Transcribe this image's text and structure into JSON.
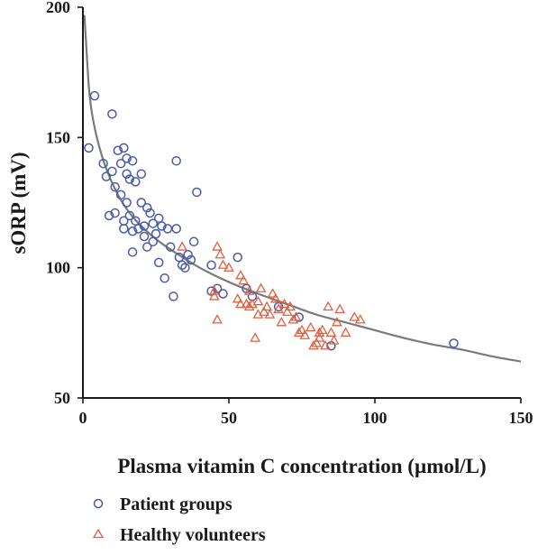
{
  "chart_data": {
    "type": "scatter",
    "title": "",
    "xlabel": "Plasma vitamin C concentration (µmol/L)",
    "ylabel": "sORP (mV)",
    "xlim": [
      0,
      150
    ],
    "ylim": [
      50,
      200
    ],
    "x_ticks": [
      "0",
      "50",
      "100",
      "150"
    ],
    "y_ticks": [
      "50",
      "100",
      "150",
      "200"
    ],
    "grid": false,
    "legend_position": "bottom-left",
    "colors": {
      "patient": "#4a5aa8",
      "healthy": "#e06040",
      "fit": "#7a7a7a",
      "axis": "#1a1a1a"
    },
    "fit_curve": {
      "shape": "decreasing power-law fit",
      "x_min": 0.5,
      "x_max": 150,
      "points": [
        [
          0.5,
          197
        ],
        [
          1,
          188
        ],
        [
          2,
          170
        ],
        [
          3,
          160
        ],
        [
          5,
          149
        ],
        [
          8,
          138
        ],
        [
          12,
          128
        ],
        [
          16,
          121
        ],
        [
          20,
          116
        ],
        [
          25,
          111
        ],
        [
          30,
          107
        ],
        [
          40,
          100
        ],
        [
          50,
          94.5
        ],
        [
          60,
          90
        ],
        [
          70,
          86
        ],
        [
          80,
          82
        ],
        [
          90,
          79
        ],
        [
          100,
          76
        ],
        [
          110,
          73
        ],
        [
          120,
          70.5
        ],
        [
          130,
          68.5
        ],
        [
          140,
          66
        ],
        [
          150,
          64
        ]
      ]
    },
    "series": [
      {
        "name": "Patient groups",
        "marker": "circle-open",
        "color": "#4a5aa8",
        "points": [
          [
            2,
            146
          ],
          [
            4,
            166
          ],
          [
            7,
            140
          ],
          [
            8,
            135
          ],
          [
            9,
            120
          ],
          [
            10,
            159
          ],
          [
            10,
            137
          ],
          [
            11,
            131
          ],
          [
            11,
            121
          ],
          [
            12,
            145
          ],
          [
            13,
            140
          ],
          [
            13,
            128
          ],
          [
            14,
            146
          ],
          [
            14,
            118
          ],
          [
            14,
            115
          ],
          [
            15,
            142
          ],
          [
            15,
            136
          ],
          [
            15,
            125
          ],
          [
            16,
            120
          ],
          [
            16,
            134
          ],
          [
            17,
            141
          ],
          [
            17,
            114
          ],
          [
            17,
            106
          ],
          [
            18,
            133
          ],
          [
            18,
            118
          ],
          [
            19,
            115
          ],
          [
            20,
            136
          ],
          [
            20,
            125
          ],
          [
            21,
            116
          ],
          [
            21,
            112
          ],
          [
            22,
            123
          ],
          [
            22,
            108
          ],
          [
            23,
            121
          ],
          [
            24,
            117
          ],
          [
            24,
            110
          ],
          [
            25,
            113
          ],
          [
            26,
            119
          ],
          [
            26,
            102
          ],
          [
            27,
            116
          ],
          [
            28,
            96
          ],
          [
            29,
            115
          ],
          [
            30,
            108
          ],
          [
            31,
            89
          ],
          [
            32,
            141
          ],
          [
            32,
            115
          ],
          [
            33,
            104
          ],
          [
            34,
            101
          ],
          [
            35,
            100
          ],
          [
            36,
            105
          ],
          [
            37,
            103
          ],
          [
            38,
            110
          ],
          [
            39,
            129
          ],
          [
            44,
            91
          ],
          [
            44,
            101
          ],
          [
            46,
            92
          ],
          [
            48,
            90
          ],
          [
            53,
            104
          ],
          [
            56,
            92
          ],
          [
            58,
            89
          ],
          [
            67,
            85
          ],
          [
            74,
            81
          ],
          [
            85,
            70
          ],
          [
            127,
            71
          ]
        ]
      },
      {
        "name": "Healthy volunteers",
        "marker": "triangle-open",
        "color": "#e06040",
        "points": [
          [
            34,
            108
          ],
          [
            45,
            89
          ],
          [
            45,
            91
          ],
          [
            46,
            80
          ],
          [
            46,
            108
          ],
          [
            47,
            105
          ],
          [
            48,
            101
          ],
          [
            50,
            100
          ],
          [
            53,
            88
          ],
          [
            54,
            86
          ],
          [
            54,
            97
          ],
          [
            55,
            95
          ],
          [
            56,
            86
          ],
          [
            57,
            85
          ],
          [
            57,
            91
          ],
          [
            58,
            86
          ],
          [
            59,
            73
          ],
          [
            60,
            82
          ],
          [
            60,
            87
          ],
          [
            61,
            92
          ],
          [
            62,
            83
          ],
          [
            63,
            85
          ],
          [
            64,
            82
          ],
          [
            65,
            90
          ],
          [
            66,
            88
          ],
          [
            67,
            84
          ],
          [
            68,
            79
          ],
          [
            69,
            86
          ],
          [
            70,
            83
          ],
          [
            71,
            85
          ],
          [
            72,
            80
          ],
          [
            73,
            81
          ],
          [
            74,
            75
          ],
          [
            75,
            76
          ],
          [
            76,
            74
          ],
          [
            78,
            77
          ],
          [
            79,
            70
          ],
          [
            80,
            71
          ],
          [
            81,
            73
          ],
          [
            81,
            75
          ],
          [
            82,
            76
          ],
          [
            83,
            70
          ],
          [
            84,
            85
          ],
          [
            85,
            75
          ],
          [
            86,
            72
          ],
          [
            87,
            79
          ],
          [
            88,
            84
          ],
          [
            90,
            75
          ],
          [
            93,
            81
          ],
          [
            95,
            80
          ]
        ]
      }
    ]
  }
}
